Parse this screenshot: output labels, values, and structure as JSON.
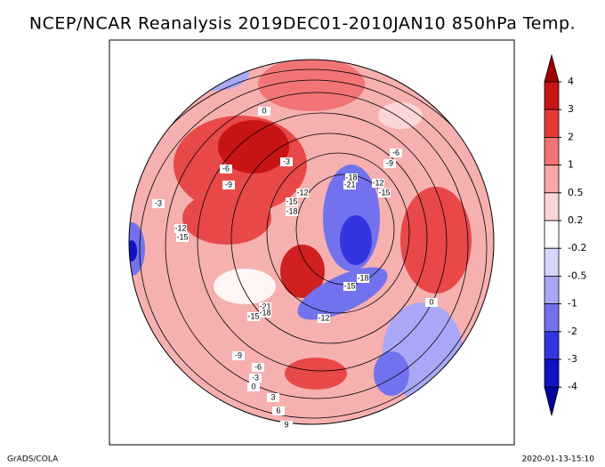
{
  "title": "NCEP/NCAR Reanalysis 2019DEC01-2010JAN10 850hPa Temp.",
  "colorbar": {
    "ticks": [
      4,
      3,
      2,
      1,
      0.5,
      0.2,
      -0.2,
      -0.5,
      -1,
      -2,
      -3,
      -4
    ],
    "colors": [
      "#a00000",
      "#c81414",
      "#e43a3a",
      "#f27474",
      "#f8a8a8",
      "#fcd6d6",
      "#ffffff",
      "#d6d6fc",
      "#a8a8f6",
      "#7272ee",
      "#3434e0",
      "#1212c4",
      "#0000a0"
    ]
  },
  "contour_labels": [
    0,
    -3,
    -6,
    -9,
    -3,
    -12,
    -15,
    -18,
    -18,
    -21,
    -12,
    -15,
    -6,
    -9,
    -12,
    -15,
    -18,
    -15,
    -21,
    -18,
    -15,
    -12,
    -9,
    -6,
    -3,
    0,
    3,
    6,
    9,
    0
  ],
  "footer": {
    "left": "GrADS/COLA",
    "right": "2020-01-13-15:10"
  }
}
